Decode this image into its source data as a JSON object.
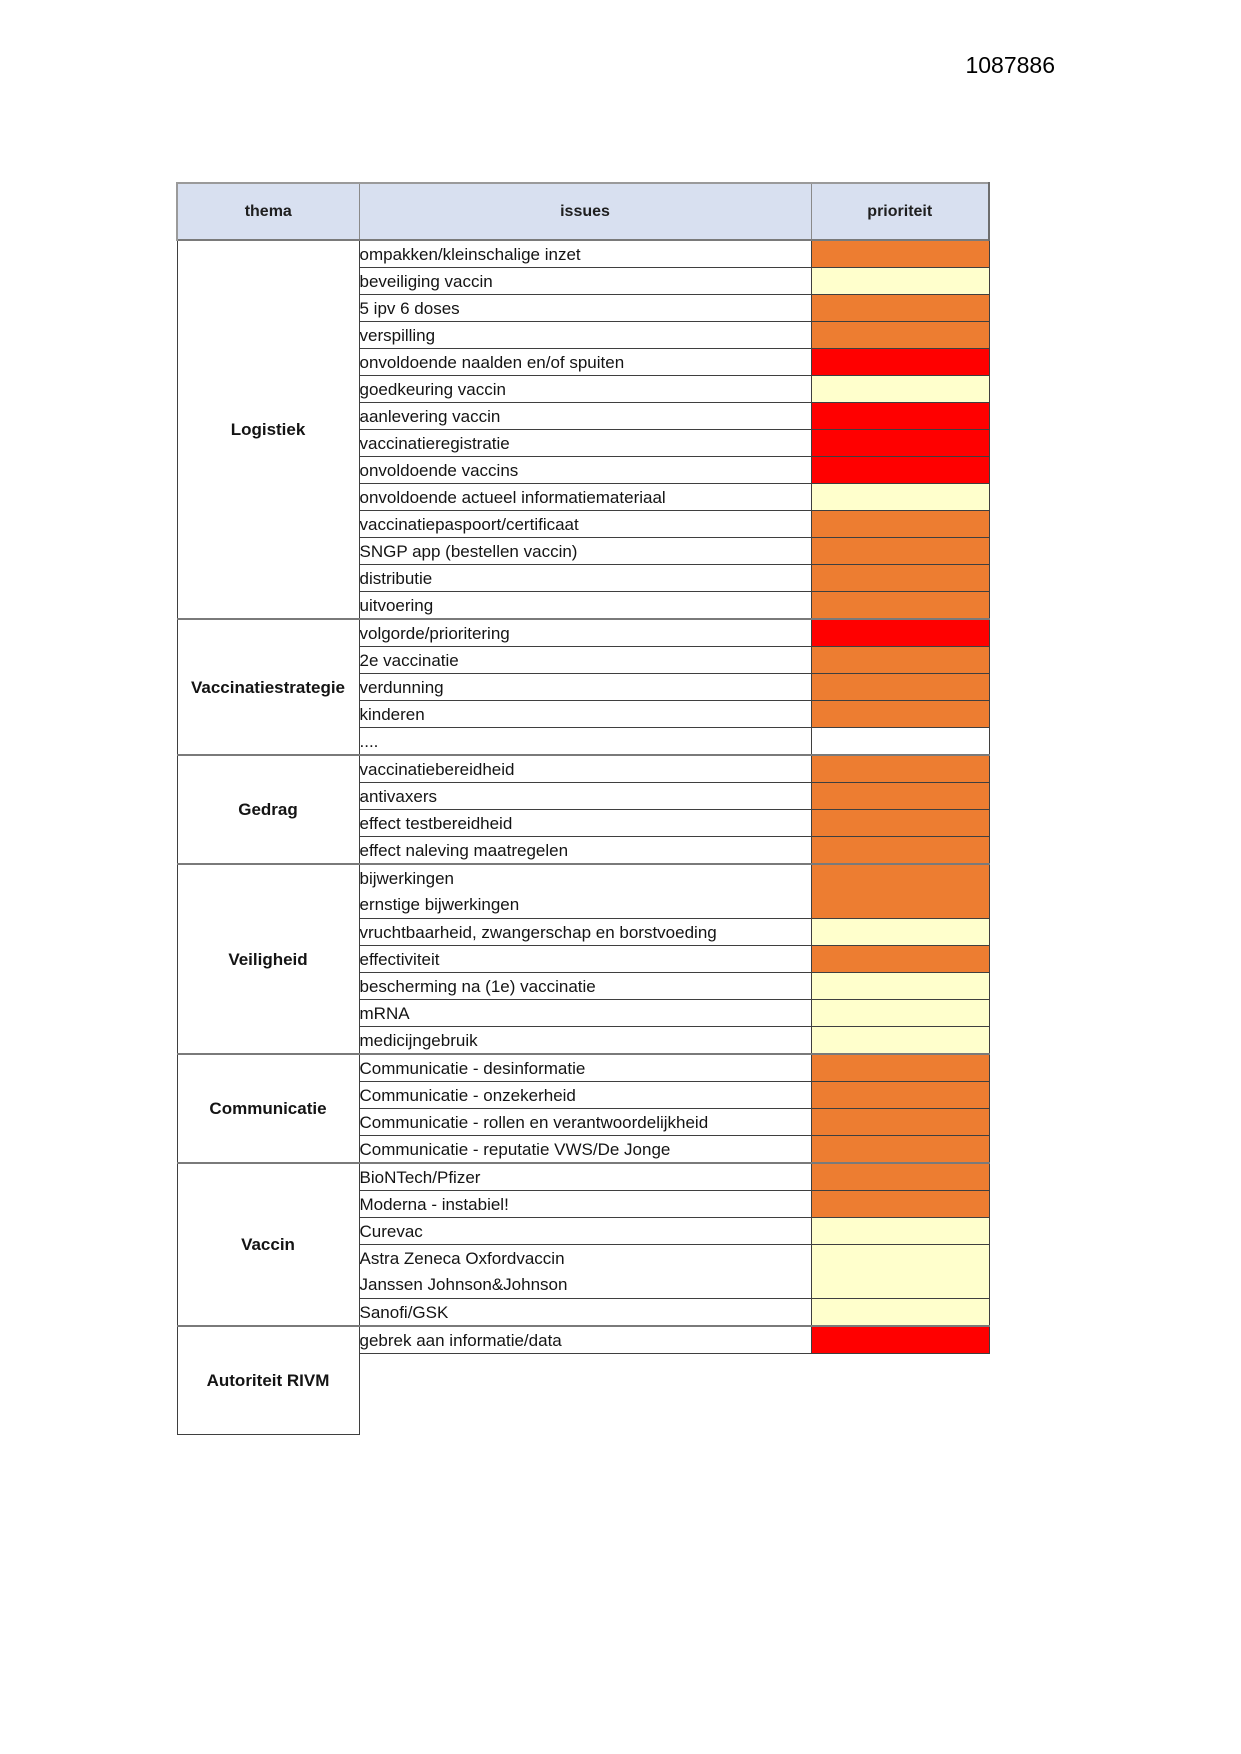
{
  "page": {
    "doc_number": "1087886"
  },
  "table": {
    "headers": {
      "thema": "thema",
      "issues": "issues",
      "prioriteit": "prioriteit"
    },
    "colors": {
      "orange": "#ED7D31",
      "yellow": "#FFFFCC",
      "red": "#FF0000",
      "none": "#FFFFFF",
      "header_bg": "#D8E0F0"
    },
    "sections": [
      {
        "theme": "Logistiek",
        "rows": [
          {
            "issue": "ompakken/kleinschalige inzet",
            "priority": "orange"
          },
          {
            "issue": "beveiliging vaccin",
            "priority": "yellow"
          },
          {
            "issue": "5 ipv 6 doses",
            "priority": "orange"
          },
          {
            "issue": "verspilling",
            "priority": "orange"
          },
          {
            "issue": "onvoldoende naalden en/of spuiten",
            "priority": "red"
          },
          {
            "issue": "goedkeuring vaccin",
            "priority": "yellow"
          },
          {
            "issue": "aanlevering vaccin",
            "priority": "red"
          },
          {
            "issue": "vaccinatieregistratie",
            "priority": "red"
          },
          {
            "issue": "onvoldoende vaccins",
            "priority": "red"
          },
          {
            "issue": "onvoldoende actueel informatiemateriaal",
            "priority": "yellow"
          },
          {
            "issue": "vaccinatiepaspoort/certificaat",
            "priority": "orange"
          },
          {
            "issue": "SNGP app (bestellen vaccin)",
            "priority": "orange"
          },
          {
            "issue": "distributie",
            "priority": "orange"
          },
          {
            "issue": "uitvoering",
            "priority": "orange"
          }
        ]
      },
      {
        "theme": "Vaccinatiestrategie",
        "rows": [
          {
            "issue": "volgorde/prioritering",
            "priority": "red"
          },
          {
            "issue": "2e vaccinatie",
            "priority": "orange"
          },
          {
            "issue": "verdunning",
            "priority": "orange"
          },
          {
            "issue": "kinderen",
            "priority": "orange"
          },
          {
            "issue": "....",
            "priority": "none"
          }
        ]
      },
      {
        "theme": "Gedrag",
        "rows": [
          {
            "issue": "vaccinatiebereidheid",
            "priority": "orange"
          },
          {
            "issue": "antivaxers",
            "priority": "orange"
          },
          {
            "issue": "effect testbereidheid",
            "priority": "orange"
          },
          {
            "issue": "effect naleving maatregelen",
            "priority": "orange"
          }
        ]
      },
      {
        "theme": "Veiligheid",
        "rows": [
          {
            "issue_lines": [
              "bijwerkingen",
              "ernstige bijwerkingen"
            ],
            "priority": "orange"
          },
          {
            "issue": "vruchtbaarheid, zwangerschap en borstvoeding",
            "priority": "yellow"
          },
          {
            "issue": "effectiviteit",
            "priority": "orange"
          },
          {
            "issue": "bescherming na (1e) vaccinatie",
            "priority": "yellow"
          },
          {
            "issue": "mRNA",
            "priority": "yellow"
          },
          {
            "issue": "medicijngebruik",
            "priority": "yellow"
          }
        ]
      },
      {
        "theme": "Communicatie",
        "rows": [
          {
            "issue": "Communicatie - desinformatie",
            "priority": "orange"
          },
          {
            "issue": "Communicatie - onzekerheid",
            "priority": "orange"
          },
          {
            "issue": "Communicatie - rollen en verantwoordelijkheid",
            "priority": "orange"
          },
          {
            "issue": "Communicatie - reputatie VWS/De Jonge",
            "priority": "orange"
          }
        ]
      },
      {
        "theme": "Vaccin",
        "rows": [
          {
            "issue": "BioNTech/Pfizer",
            "priority": "orange"
          },
          {
            "issue": "Moderna - instabiel!",
            "priority": "orange"
          },
          {
            "issue": "Curevac",
            "priority": "yellow"
          },
          {
            "issue_lines": [
              "Astra Zeneca Oxfordvaccin",
              "Janssen Johnson&Johnson"
            ],
            "priority": "yellow"
          },
          {
            "issue": "Sanofi/GSK",
            "priority": "yellow"
          }
        ]
      },
      {
        "theme": "Autoriteit RIVM",
        "rows": [
          {
            "issue": "gebrek aan informatie/data",
            "priority": "red"
          },
          {
            "filler": true
          }
        ]
      }
    ]
  }
}
